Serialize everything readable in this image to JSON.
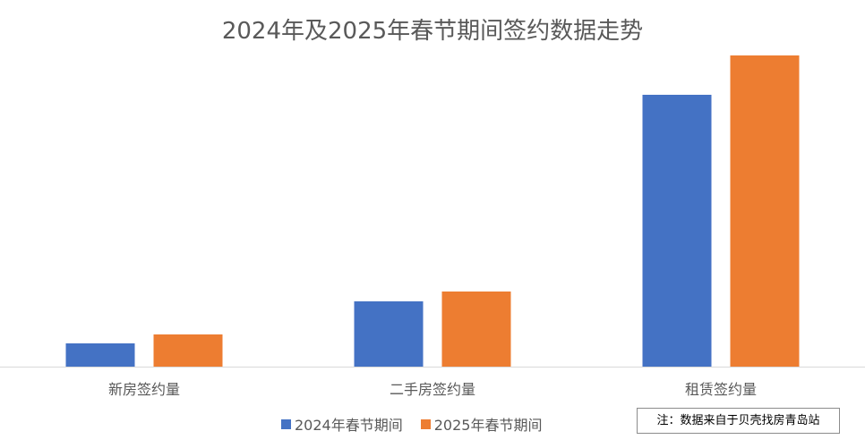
{
  "chart_data": {
    "type": "bar",
    "title": "2024年及2025年春节期间签约数据走势",
    "categories": [
      "新房签约量",
      "二手房签约量",
      "租赁签约量"
    ],
    "series": [
      {
        "name": "2024年春节期间",
        "values": [
          26,
          73,
          304
        ],
        "color": "#4472C4"
      },
      {
        "name": "2025年春节期间",
        "values": [
          36,
          84,
          348
        ],
        "color": "#ED7D31"
      }
    ],
    "ylim": [
      0,
      360
    ],
    "xlabel": "",
    "ylabel": "",
    "grid": false,
    "legend_position": "bottom"
  },
  "note": "注：数据来自于贝壳找房青岛站"
}
